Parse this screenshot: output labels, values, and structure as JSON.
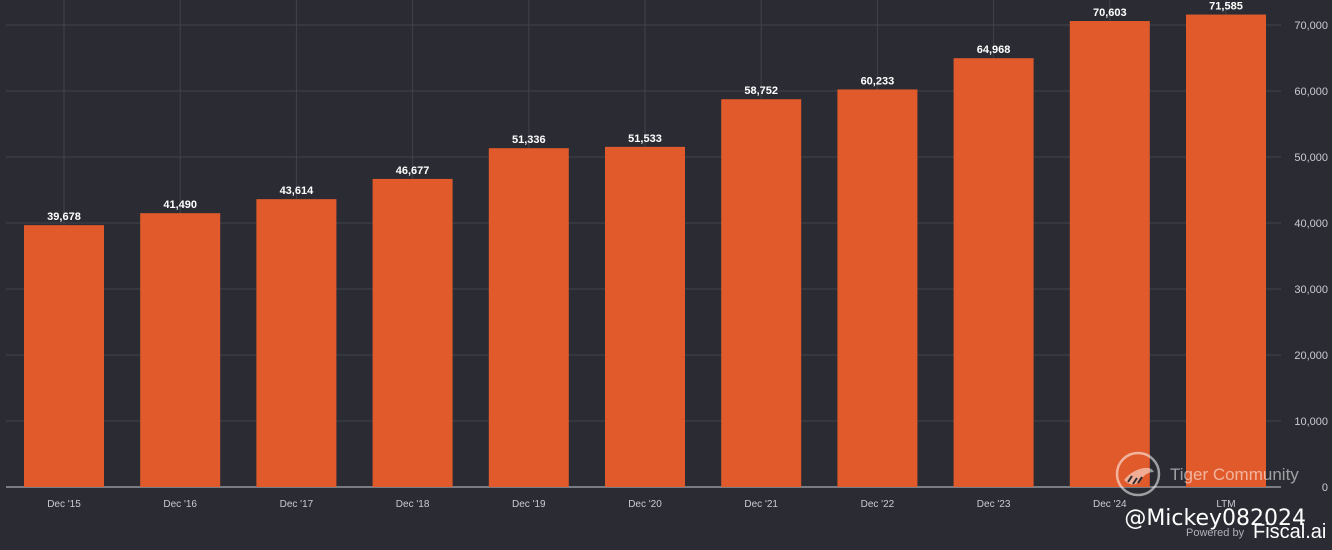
{
  "chart_data": {
    "type": "bar",
    "categories": [
      "Dec '15",
      "Dec '16",
      "Dec '17",
      "Dec '18",
      "Dec '19",
      "Dec '20",
      "Dec '21",
      "Dec '22",
      "Dec '23",
      "Dec '24",
      "LTM"
    ],
    "values": [
      39678,
      41490,
      43614,
      46677,
      51336,
      51533,
      58752,
      60233,
      64968,
      70603,
      71585
    ],
    "value_labels": [
      "39,678",
      "41,490",
      "43,614",
      "46,677",
      "51,336",
      "51,533",
      "58,752",
      "60,233",
      "64,968",
      "70,603",
      "71,585"
    ],
    "title": "",
    "xlabel": "",
    "ylabel": "",
    "ylim": [
      0,
      70000
    ],
    "yticks": [
      0,
      10000,
      20000,
      30000,
      40000,
      50000,
      60000,
      70000
    ],
    "ytick_labels": [
      "0",
      "10,000",
      "20,000",
      "30,000",
      "40,000",
      "50,000",
      "60,000",
      "70,000"
    ],
    "y_axis_position": "right",
    "grid": true,
    "bar_color": "#e05a2b",
    "background_color": "#2b2c33"
  },
  "watermark": {
    "text": "Tiger Community",
    "author": "@Mickey082024",
    "powered_by": "Powered by",
    "brand": "Fiscal.ai"
  }
}
